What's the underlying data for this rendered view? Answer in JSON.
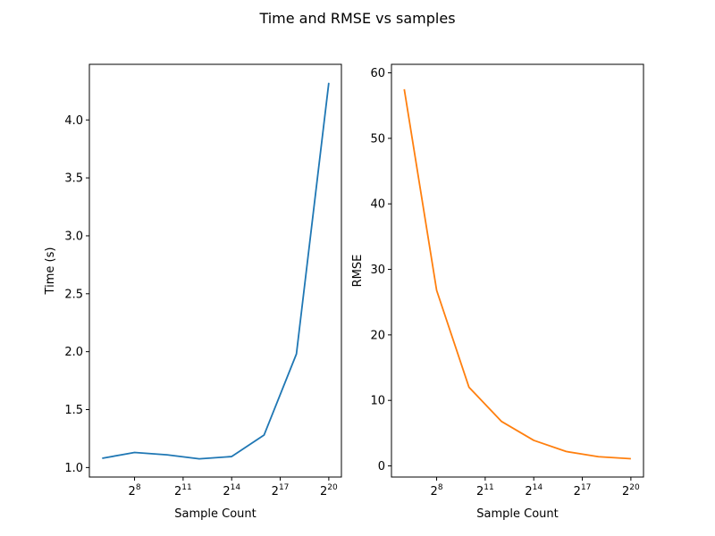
{
  "figure": {
    "title": "Time and RMSE vs samples"
  },
  "chart_data": [
    {
      "type": "line",
      "xlabel": "Sample Count",
      "ylabel": "Time (s)",
      "xscale": "log2",
      "x": [
        64,
        256,
        1024,
        4096,
        16384,
        65536,
        262144,
        1048576
      ],
      "xticks": [
        {
          "value": 256,
          "base": "2",
          "exp": "8"
        },
        {
          "value": 2048,
          "base": "2",
          "exp": "11"
        },
        {
          "value": 16384,
          "base": "2",
          "exp": "14"
        },
        {
          "value": 131072,
          "base": "2",
          "exp": "17"
        },
        {
          "value": 1048576,
          "base": "2",
          "exp": "20"
        }
      ],
      "yticks": [
        1.0,
        1.5,
        2.0,
        2.5,
        3.0,
        3.5,
        4.0
      ],
      "ytick_labels": [
        "1.0",
        "1.5",
        "2.0",
        "2.5",
        "3.0",
        "3.5",
        "4.0"
      ],
      "xlim": [
        37,
        1800000
      ],
      "ylim": [
        0.918,
        4.48
      ],
      "grid": false,
      "series": [
        {
          "color": "#1f77b4",
          "values": [
            1.08,
            1.13,
            1.11,
            1.075,
            1.095,
            1.28,
            1.98,
            4.32
          ]
        }
      ]
    },
    {
      "type": "line",
      "xlabel": "Sample Count",
      "ylabel": "RMSE",
      "xscale": "log2",
      "x": [
        64,
        256,
        1024,
        4096,
        16384,
        65536,
        262144,
        1048576
      ],
      "xticks": [
        {
          "value": 256,
          "base": "2",
          "exp": "8"
        },
        {
          "value": 2048,
          "base": "2",
          "exp": "11"
        },
        {
          "value": 16384,
          "base": "2",
          "exp": "14"
        },
        {
          "value": 131072,
          "base": "2",
          "exp": "17"
        },
        {
          "value": 1048576,
          "base": "2",
          "exp": "20"
        }
      ],
      "yticks": [
        0,
        10,
        20,
        30,
        40,
        50,
        60
      ],
      "ytick_labels": [
        "0",
        "10",
        "20",
        "30",
        "40",
        "50",
        "60"
      ],
      "xlim": [
        37,
        1800000
      ],
      "ylim": [
        -1.7,
        61.3
      ],
      "grid": false,
      "series": [
        {
          "color": "#ff7f0e",
          "values": [
            57.5,
            26.8,
            12.0,
            6.8,
            3.9,
            2.2,
            1.4,
            1.1
          ]
        }
      ]
    }
  ]
}
